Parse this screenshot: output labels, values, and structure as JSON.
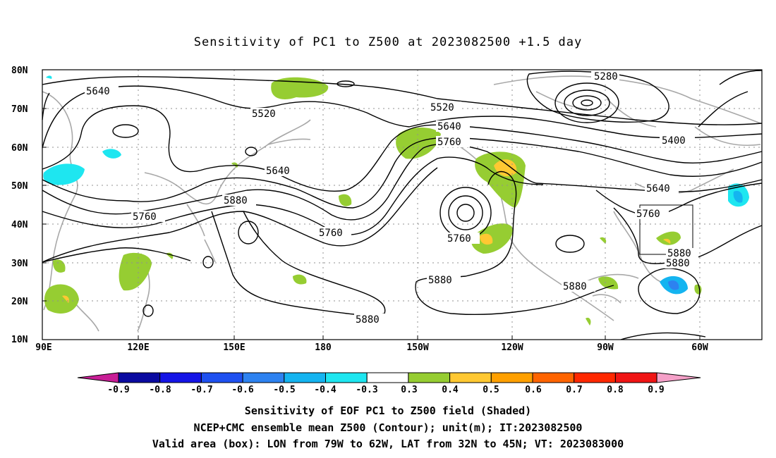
{
  "title": "Sensitivity of PC1 to Z500 at 2023082500 +1.5 day",
  "lat_labels": [
    "80N",
    "70N",
    "60N",
    "50N",
    "40N",
    "30N",
    "20N",
    "10N"
  ],
  "lon_labels": [
    "90E",
    "120E",
    "150E",
    "180",
    "150W",
    "120W",
    "90W",
    "60W"
  ],
  "contour_labels": [
    "5280",
    "5520",
    "5520",
    "5640",
    "5640",
    "5640",
    "5640",
    "5760",
    "5760",
    "5760",
    "5760",
    "5760",
    "5880",
    "5880",
    "5880",
    "5880",
    "5880",
    "5880",
    "5400"
  ],
  "colorbar": {
    "labels": [
      "-0.9",
      "-0.8",
      "-0.7",
      "-0.6",
      "-0.5",
      "-0.4",
      "-0.3",
      "0.3",
      "0.4",
      "0.5",
      "0.6",
      "0.7",
      "0.8",
      "0.9"
    ],
    "colors": [
      "#0a0aa0",
      "#1414e6",
      "#1e50f0",
      "#2d82f0",
      "#14b4f0",
      "#1ee6f0",
      "#ffffff",
      "#96cd32",
      "#ffc832",
      "#ffa000",
      "#ff6400",
      "#ff2800",
      "#f01414"
    ],
    "left_tip_color": "#c81e96",
    "right_tip_color": "#f5a0c8"
  },
  "captions": [
    "Sensitivity of EOF PC1 to Z500 field (Shaded)",
    "NCEP+CMC ensemble mean Z500 (Contour); unit(m); IT:2023082500",
    "Valid area (box): LON from 79W to 62W, LAT from 32N to 45N; VT: 2023083000"
  ]
}
